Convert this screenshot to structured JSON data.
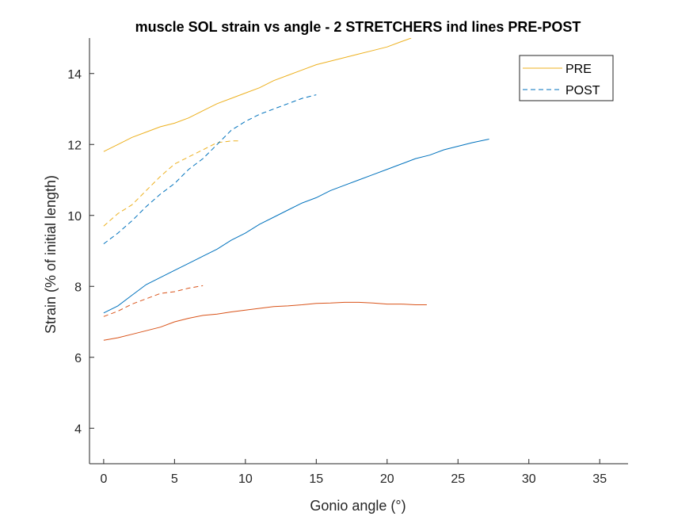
{
  "chart_data": {
    "type": "line",
    "title": "muscle SOL strain vs angle - 2 STRETCHERS ind lines PRE-POST",
    "xlabel": "Gonio angle (°)",
    "ylabel": "Strain (% of initial length)",
    "xlim": [
      -1,
      37
    ],
    "ylim": [
      3,
      15
    ],
    "xticks": [
      0,
      5,
      10,
      15,
      20,
      25,
      30,
      35
    ],
    "yticks": [
      4,
      6,
      8,
      10,
      12,
      14
    ],
    "xtick_labels": [
      "0",
      "5",
      "10",
      "15",
      "20",
      "25",
      "30",
      "35"
    ],
    "ytick_labels": [
      "4",
      "6",
      "8",
      "10",
      "12",
      "14"
    ],
    "grid": false,
    "legend_position": "top-right",
    "legend": [
      {
        "label": "PRE",
        "style": "solid",
        "color": "#EDB120"
      },
      {
        "label": "POST",
        "style": "dashed",
        "color": "#0072BD"
      }
    ],
    "series": [
      {
        "condition": "PRE",
        "style": "solid",
        "color": "#EDB120",
        "x": [
          0,
          1,
          2,
          3,
          4,
          5,
          6,
          7,
          8,
          9,
          10,
          11,
          12,
          13,
          14,
          15,
          16,
          17,
          18,
          19,
          20,
          21,
          21.7
        ],
        "y": [
          11.8,
          12.0,
          12.2,
          12.35,
          12.5,
          12.6,
          12.75,
          12.95,
          13.15,
          13.3,
          13.45,
          13.6,
          13.8,
          13.95,
          14.1,
          14.25,
          14.35,
          14.45,
          14.55,
          14.65,
          14.75,
          14.9,
          15.0
        ]
      },
      {
        "condition": "POST",
        "style": "dashed",
        "color": "#EDB120",
        "x": [
          0,
          1,
          2,
          3,
          4,
          5,
          6,
          7,
          8,
          9,
          9.5
        ],
        "y": [
          9.7,
          10.05,
          10.3,
          10.7,
          11.1,
          11.45,
          11.65,
          11.85,
          12.05,
          12.1,
          12.1
        ]
      },
      {
        "condition": "PRE",
        "style": "solid",
        "color": "#0072BD",
        "x": [
          0,
          1,
          2,
          3,
          4,
          5,
          6,
          7,
          8,
          9,
          10,
          11,
          12,
          13,
          14,
          15,
          16,
          17,
          18,
          19,
          20,
          21,
          22,
          23,
          24,
          25,
          26,
          27.2
        ],
        "y": [
          7.25,
          7.45,
          7.75,
          8.05,
          8.25,
          8.45,
          8.65,
          8.85,
          9.05,
          9.3,
          9.5,
          9.75,
          9.95,
          10.15,
          10.35,
          10.5,
          10.7,
          10.85,
          11.0,
          11.15,
          11.3,
          11.45,
          11.6,
          11.7,
          11.85,
          11.95,
          12.05,
          12.15
        ]
      },
      {
        "condition": "POST",
        "style": "dashed",
        "color": "#0072BD",
        "x": [
          0,
          1,
          2,
          3,
          4,
          5,
          6,
          7,
          8,
          9,
          10,
          11,
          12,
          13,
          14,
          15
        ],
        "y": [
          9.2,
          9.5,
          9.85,
          10.25,
          10.6,
          10.9,
          11.3,
          11.6,
          12.0,
          12.4,
          12.65,
          12.85,
          13.0,
          13.15,
          13.3,
          13.4
        ]
      },
      {
        "condition": "PRE",
        "style": "solid",
        "color": "#D95319",
        "x": [
          0,
          1,
          2,
          3,
          4,
          5,
          6,
          7,
          8,
          9,
          10,
          11,
          12,
          13,
          14,
          15,
          16,
          17,
          18,
          19,
          20,
          21,
          22,
          22.8
        ],
        "y": [
          6.48,
          6.55,
          6.65,
          6.75,
          6.85,
          7.0,
          7.1,
          7.18,
          7.22,
          7.28,
          7.33,
          7.38,
          7.43,
          7.45,
          7.48,
          7.52,
          7.53,
          7.55,
          7.55,
          7.53,
          7.5,
          7.5,
          7.48,
          7.48
        ]
      },
      {
        "condition": "POST",
        "style": "dashed",
        "color": "#D95319",
        "x": [
          0,
          1,
          2,
          3,
          4,
          5,
          6,
          7
        ],
        "y": [
          7.15,
          7.3,
          7.5,
          7.65,
          7.8,
          7.85,
          7.95,
          8.02
        ]
      }
    ]
  }
}
